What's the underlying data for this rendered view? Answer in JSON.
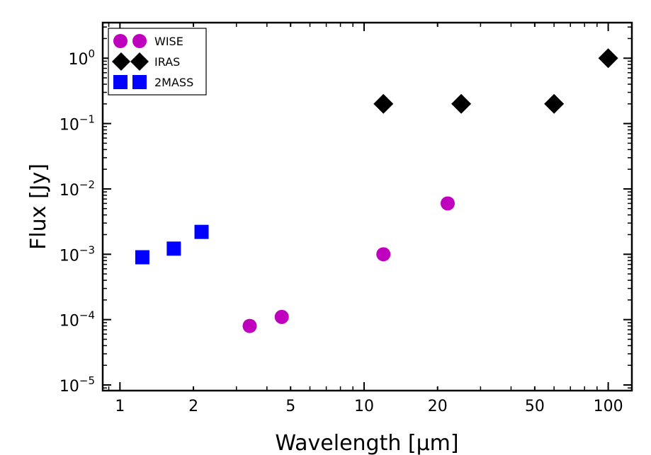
{
  "chart_data": {
    "type": "scatter",
    "title": "",
    "xlabel": "Wavelength [μm]",
    "ylabel": "Flux [Jy]",
    "xscale": "log",
    "yscale": "log",
    "xlim": [
      0.85,
      125
    ],
    "ylim": [
      8.2e-06,
      3.5
    ],
    "x_ticks": [
      {
        "value": 1,
        "label": "1"
      },
      {
        "value": 2,
        "label": "2"
      },
      {
        "value": 5,
        "label": "5"
      },
      {
        "value": 10,
        "label": "10"
      },
      {
        "value": 20,
        "label": "20"
      },
      {
        "value": 50,
        "label": "50"
      },
      {
        "value": 100,
        "label": "100"
      }
    ],
    "y_ticks": [
      {
        "value": 1,
        "base": "10",
        "exp": "0"
      },
      {
        "value": 0.1,
        "base": "10",
        "exp": "−1"
      },
      {
        "value": 0.01,
        "base": "10",
        "exp": "−2"
      },
      {
        "value": 0.001,
        "base": "10",
        "exp": "−3"
      },
      {
        "value": 0.0001,
        "base": "10",
        "exp": "−4"
      },
      {
        "value": 1e-05,
        "base": "10",
        "exp": "−5"
      }
    ],
    "legend_position": "top-left",
    "series": [
      {
        "name": "WISE",
        "marker": "circle",
        "color": "#bf00bf",
        "points": [
          [
            3.4,
            8e-05
          ],
          [
            4.6,
            0.00011
          ],
          [
            12,
            0.001
          ],
          [
            22,
            0.006
          ]
        ]
      },
      {
        "name": "IRAS",
        "marker": "diamond",
        "color": "#000000",
        "points": [
          [
            12,
            0.2
          ],
          [
            25,
            0.2
          ],
          [
            60,
            0.2
          ],
          [
            100,
            1.0
          ]
        ]
      },
      {
        "name": "2MASS",
        "marker": "square",
        "color": "#0000ff",
        "points": [
          [
            1.235,
            0.0009
          ],
          [
            1.662,
            0.00122
          ],
          [
            2.159,
            0.0022
          ]
        ]
      }
    ]
  }
}
